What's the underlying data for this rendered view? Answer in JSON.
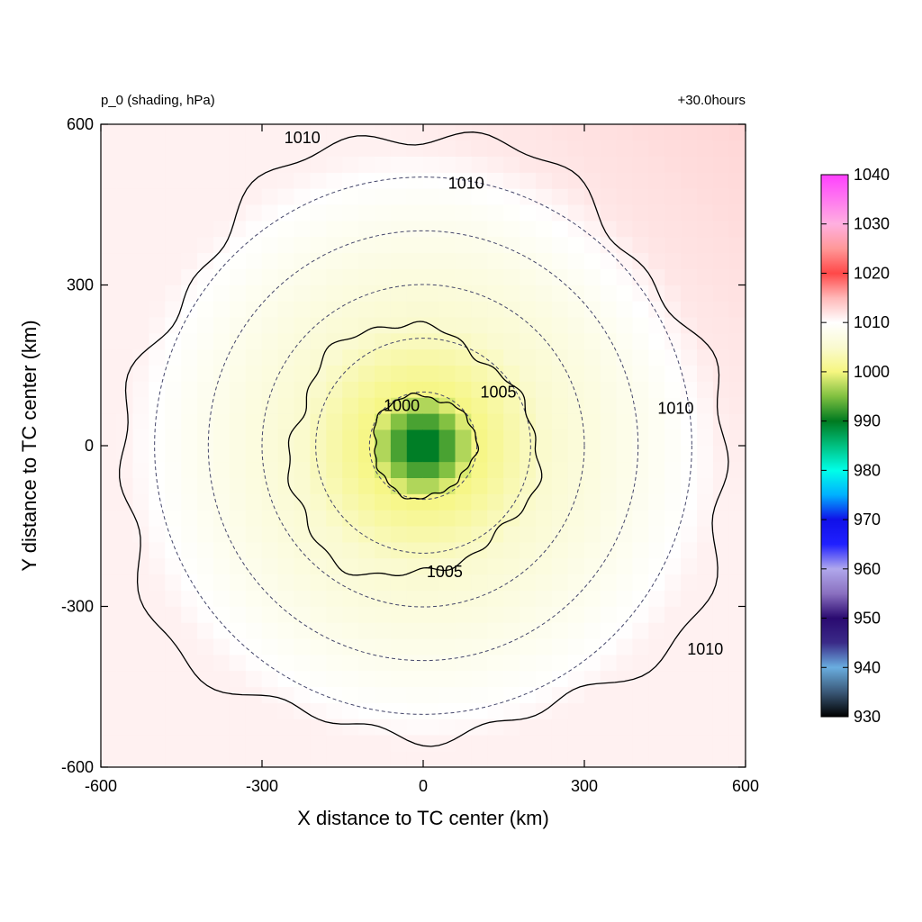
{
  "chart_data": {
    "type": "heatmap",
    "title_left": "p_0 (shading, hPa)",
    "title_right": "+30.0hours",
    "xlabel": "X distance to TC center (km)",
    "ylabel": "Y distance to TC center (km)",
    "xlim": [
      -600,
      600
    ],
    "ylim": [
      -600,
      600
    ],
    "xticks": [
      "-600",
      "-300",
      "0",
      "300",
      "600"
    ],
    "yticks": [
      "600",
      "300",
      "0",
      "-300",
      "-600"
    ],
    "xtick_values": [
      -600,
      -300,
      0,
      300,
      600
    ],
    "ytick_values": [
      600,
      300,
      0,
      -300,
      -600
    ],
    "center_pressure": 988,
    "far_field_pressure": 1012,
    "contour_levels": [
      {
        "level": 1000,
        "label": "1000",
        "radius_km": 95
      },
      {
        "level": 1005,
        "label": "1005",
        "radius_km": 230
      },
      {
        "level": 1010,
        "label": "1010",
        "radius_km": 560
      }
    ],
    "contour_labels": [
      {
        "text": "1010",
        "x": -225,
        "y": 565
      },
      {
        "text": "1010",
        "x": 80,
        "y": 480
      },
      {
        "text": "1010",
        "x": 470,
        "y": 60
      },
      {
        "text": "1010",
        "x": 525,
        "y": -390
      },
      {
        "text": "1005",
        "x": 140,
        "y": 90
      },
      {
        "text": "1005",
        "x": 40,
        "y": -245
      },
      {
        "text": "1000",
        "x": -40,
        "y": 65
      }
    ],
    "range_rings_km": [
      100,
      200,
      300,
      400,
      500
    ],
    "colorbar": {
      "min": 930,
      "max": 1040,
      "ticks": [
        "1040",
        "1030",
        "1020",
        "1010",
        "1000",
        "990",
        "980",
        "970",
        "960",
        "950",
        "940",
        "930"
      ],
      "tick_values": [
        1040,
        1030,
        1020,
        1010,
        1000,
        990,
        980,
        970,
        960,
        950,
        940,
        930
      ],
      "stops": [
        {
          "v": 930,
          "c": "#000000"
        },
        {
          "v": 935,
          "c": "#3a5878"
        },
        {
          "v": 940,
          "c": "#6aaee0"
        },
        {
          "v": 945,
          "c": "#3a2a88"
        },
        {
          "v": 950,
          "c": "#2a0a70"
        },
        {
          "v": 955,
          "c": "#8a70c0"
        },
        {
          "v": 960,
          "c": "#b0a8ec"
        },
        {
          "v": 965,
          "c": "#2020ff"
        },
        {
          "v": 970,
          "c": "#1010e8"
        },
        {
          "v": 975,
          "c": "#00b0ff"
        },
        {
          "v": 980,
          "c": "#00ffe8"
        },
        {
          "v": 985,
          "c": "#00c080"
        },
        {
          "v": 990,
          "c": "#007a20"
        },
        {
          "v": 995,
          "c": "#80c040"
        },
        {
          "v": 1000,
          "c": "#f6f680"
        },
        {
          "v": 1005,
          "c": "#fafad0"
        },
        {
          "v": 1010,
          "c": "#ffffff"
        },
        {
          "v": 1015,
          "c": "#ffb8b8"
        },
        {
          "v": 1020,
          "c": "#ff4848"
        },
        {
          "v": 1025,
          "c": "#ff9898"
        },
        {
          "v": 1030,
          "c": "#ffb0e0"
        },
        {
          "v": 1040,
          "c": "#ff40ff"
        }
      ]
    }
  }
}
